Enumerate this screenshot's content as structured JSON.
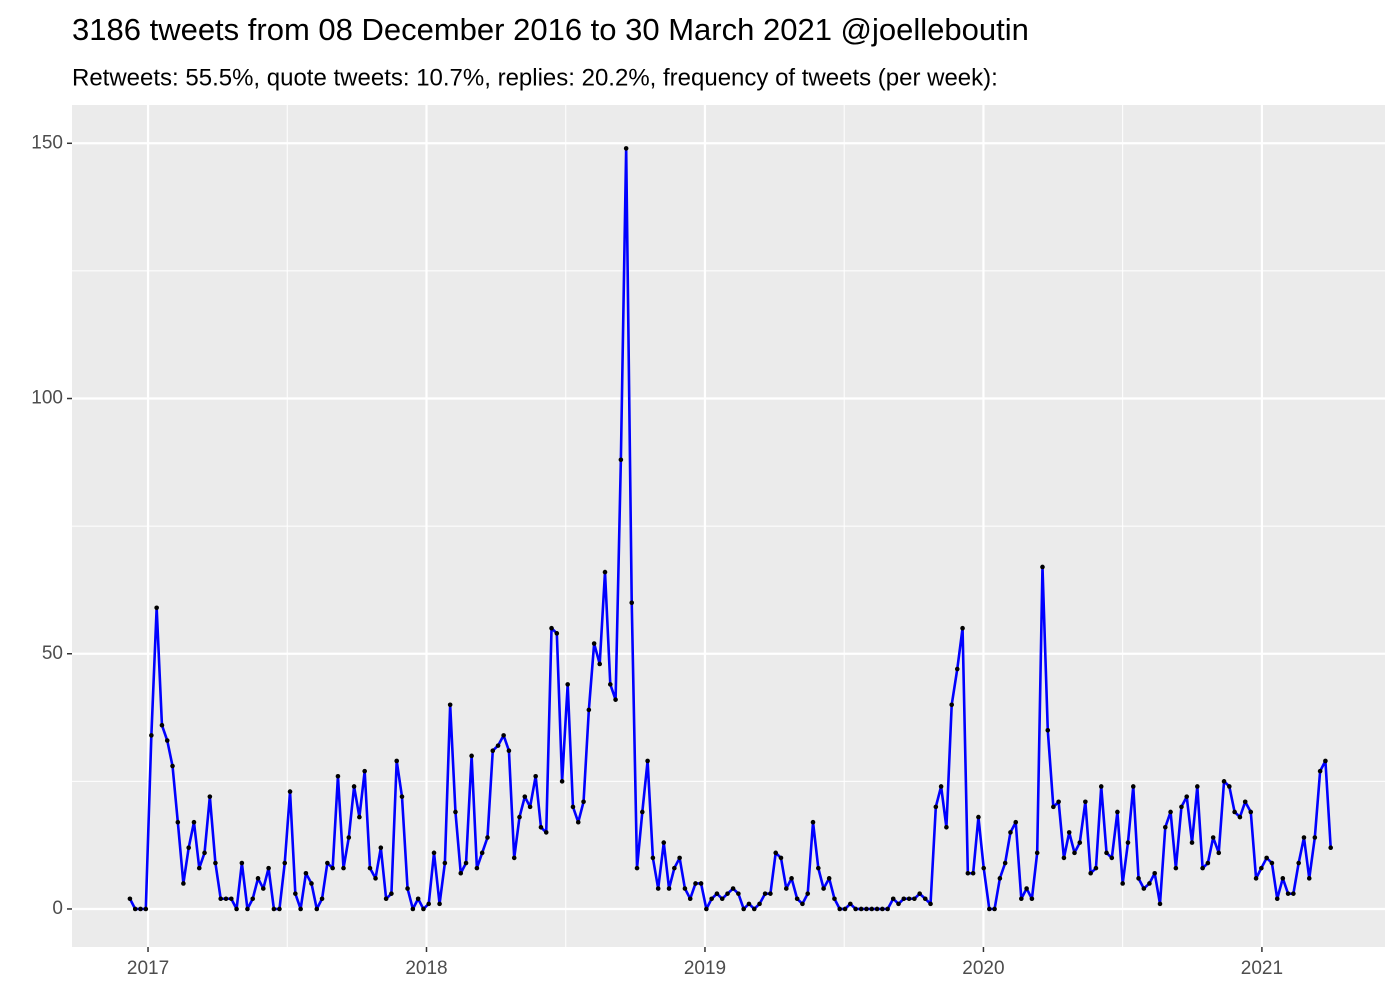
{
  "chart_data": {
    "type": "line",
    "title": "3186 tweets from 08 December 2016 to 30 March 2021 @joelleboutin",
    "subtitle": "Retweets: 55.5%, quote tweets: 10.7%, replies: 20.2%, frequency of tweets (per week):",
    "x": [
      2016.935,
      2016.954,
      2016.973,
      2016.992,
      2017.012,
      2017.031,
      2017.05,
      2017.069,
      2017.088,
      2017.107,
      2017.127,
      2017.146,
      2017.165,
      2017.184,
      2017.203,
      2017.222,
      2017.242,
      2017.261,
      2017.28,
      2017.299,
      2017.318,
      2017.337,
      2017.357,
      2017.376,
      2017.395,
      2017.414,
      2017.433,
      2017.452,
      2017.472,
      2017.491,
      2017.51,
      2017.529,
      2017.548,
      2017.567,
      2017.587,
      2017.606,
      2017.625,
      2017.644,
      2017.663,
      2017.682,
      2017.702,
      2017.721,
      2017.74,
      2017.759,
      2017.778,
      2017.797,
      2017.817,
      2017.836,
      2017.855,
      2017.874,
      2017.893,
      2017.912,
      2017.932,
      2017.951,
      2017.97,
      2017.989,
      2018.008,
      2018.027,
      2018.047,
      2018.066,
      2018.085,
      2018.104,
      2018.123,
      2018.142,
      2018.162,
      2018.181,
      2018.2,
      2018.219,
      2018.238,
      2018.257,
      2018.277,
      2018.296,
      2018.315,
      2018.334,
      2018.353,
      2018.372,
      2018.392,
      2018.411,
      2018.43,
      2018.449,
      2018.468,
      2018.487,
      2018.507,
      2018.526,
      2018.545,
      2018.564,
      2018.583,
      2018.602,
      2018.622,
      2018.641,
      2018.66,
      2018.679,
      2018.698,
      2018.717,
      2018.737,
      2018.756,
      2018.775,
      2018.794,
      2018.813,
      2018.832,
      2018.852,
      2018.871,
      2018.89,
      2018.909,
      2018.928,
      2018.947,
      2018.966,
      2018.986,
      2019.005,
      2019.024,
      2019.043,
      2019.062,
      2019.081,
      2019.101,
      2019.12,
      2019.139,
      2019.158,
      2019.177,
      2019.196,
      2019.216,
      2019.235,
      2019.254,
      2019.273,
      2019.292,
      2019.311,
      2019.331,
      2019.35,
      2019.369,
      2019.388,
      2019.407,
      2019.426,
      2019.446,
      2019.465,
      2019.484,
      2019.503,
      2019.522,
      2019.541,
      2019.561,
      2019.58,
      2019.599,
      2019.618,
      2019.637,
      2019.656,
      2019.676,
      2019.695,
      2019.714,
      2019.733,
      2019.752,
      2019.771,
      2019.791,
      2019.81,
      2019.829,
      2019.848,
      2019.867,
      2019.886,
      2019.906,
      2019.925,
      2019.944,
      2019.963,
      2019.982,
      2020.001,
      2020.021,
      2020.04,
      2020.059,
      2020.078,
      2020.097,
      2020.116,
      2020.136,
      2020.155,
      2020.174,
      2020.193,
      2020.212,
      2020.231,
      2020.251,
      2020.27,
      2020.289,
      2020.308,
      2020.327,
      2020.346,
      2020.366,
      2020.385,
      2020.404,
      2020.423,
      2020.442,
      2020.461,
      2020.481,
      2020.5,
      2020.519,
      2020.538,
      2020.557,
      2020.576,
      2020.596,
      2020.615,
      2020.634,
      2020.653,
      2020.672,
      2020.691,
      2020.711,
      2020.73,
      2020.749,
      2020.768,
      2020.787,
      2020.806,
      2020.825,
      2020.845,
      2020.864,
      2020.883,
      2020.902,
      2020.921,
      2020.94,
      2020.96,
      2020.979,
      2020.998,
      2021.017,
      2021.036,
      2021.055,
      2021.075,
      2021.094,
      2021.113,
      2021.132,
      2021.151,
      2021.17,
      2021.19,
      2021.209,
      2021.228,
      2021.247
    ],
    "values": [
      2,
      0,
      0,
      0,
      34,
      59,
      36,
      33,
      28,
      17,
      5,
      12,
      17,
      8,
      11,
      22,
      9,
      2,
      2,
      2,
      0,
      9,
      0,
      2,
      6,
      4,
      8,
      0,
      0,
      9,
      23,
      3,
      0,
      7,
      5,
      0,
      2,
      9,
      8,
      26,
      8,
      14,
      24,
      18,
      27,
      8,
      6,
      12,
      2,
      3,
      29,
      22,
      4,
      0,
      2,
      0,
      1,
      11,
      1,
      9,
      40,
      19,
      7,
      9,
      30,
      8,
      11,
      14,
      31,
      32,
      34,
      31,
      10,
      18,
      22,
      20,
      26,
      16,
      15,
      55,
      54,
      25,
      44,
      20,
      17,
      21,
      39,
      52,
      48,
      66,
      44,
      41,
      88,
      149,
      60,
      8,
      19,
      29,
      10,
      4,
      13,
      4,
      8,
      10,
      4,
      2,
      5,
      5,
      0,
      2,
      3,
      2,
      3,
      4,
      3,
      0,
      1,
      0,
      1,
      3,
      3,
      11,
      10,
      4,
      6,
      2,
      1,
      3,
      17,
      8,
      4,
      6,
      2,
      0,
      0,
      1,
      0,
      0,
      0,
      0,
      0,
      0,
      0,
      2,
      1,
      2,
      2,
      2,
      3,
      2,
      1,
      20,
      24,
      16,
      40,
      47,
      55,
      7,
      7,
      18,
      8,
      0,
      0,
      6,
      9,
      15,
      17,
      2,
      4,
      2,
      11,
      67,
      35,
      20,
      21,
      10,
      15,
      11,
      13,
      21,
      7,
      8,
      24,
      11,
      10,
      19,
      5,
      13,
      24,
      6,
      4,
      5,
      7,
      1,
      16,
      19,
      8,
      20,
      22,
      13,
      24,
      8,
      9,
      14,
      11,
      25,
      24,
      19,
      18,
      21,
      19,
      6,
      8,
      10,
      9,
      2,
      6,
      3,
      3,
      9,
      14,
      6,
      14,
      27,
      29,
      12
    ],
    "color": "#0000ff",
    "marker_color": "#000000",
    "xlim": [
      2016.727,
      2021.442
    ],
    "xticks": [
      2017,
      2018,
      2019,
      2020,
      2021
    ],
    "ylim": [
      -7.45,
      157.5
    ],
    "yticks": [
      0,
      50,
      100,
      150
    ],
    "grid": true,
    "minor_grid": true
  }
}
